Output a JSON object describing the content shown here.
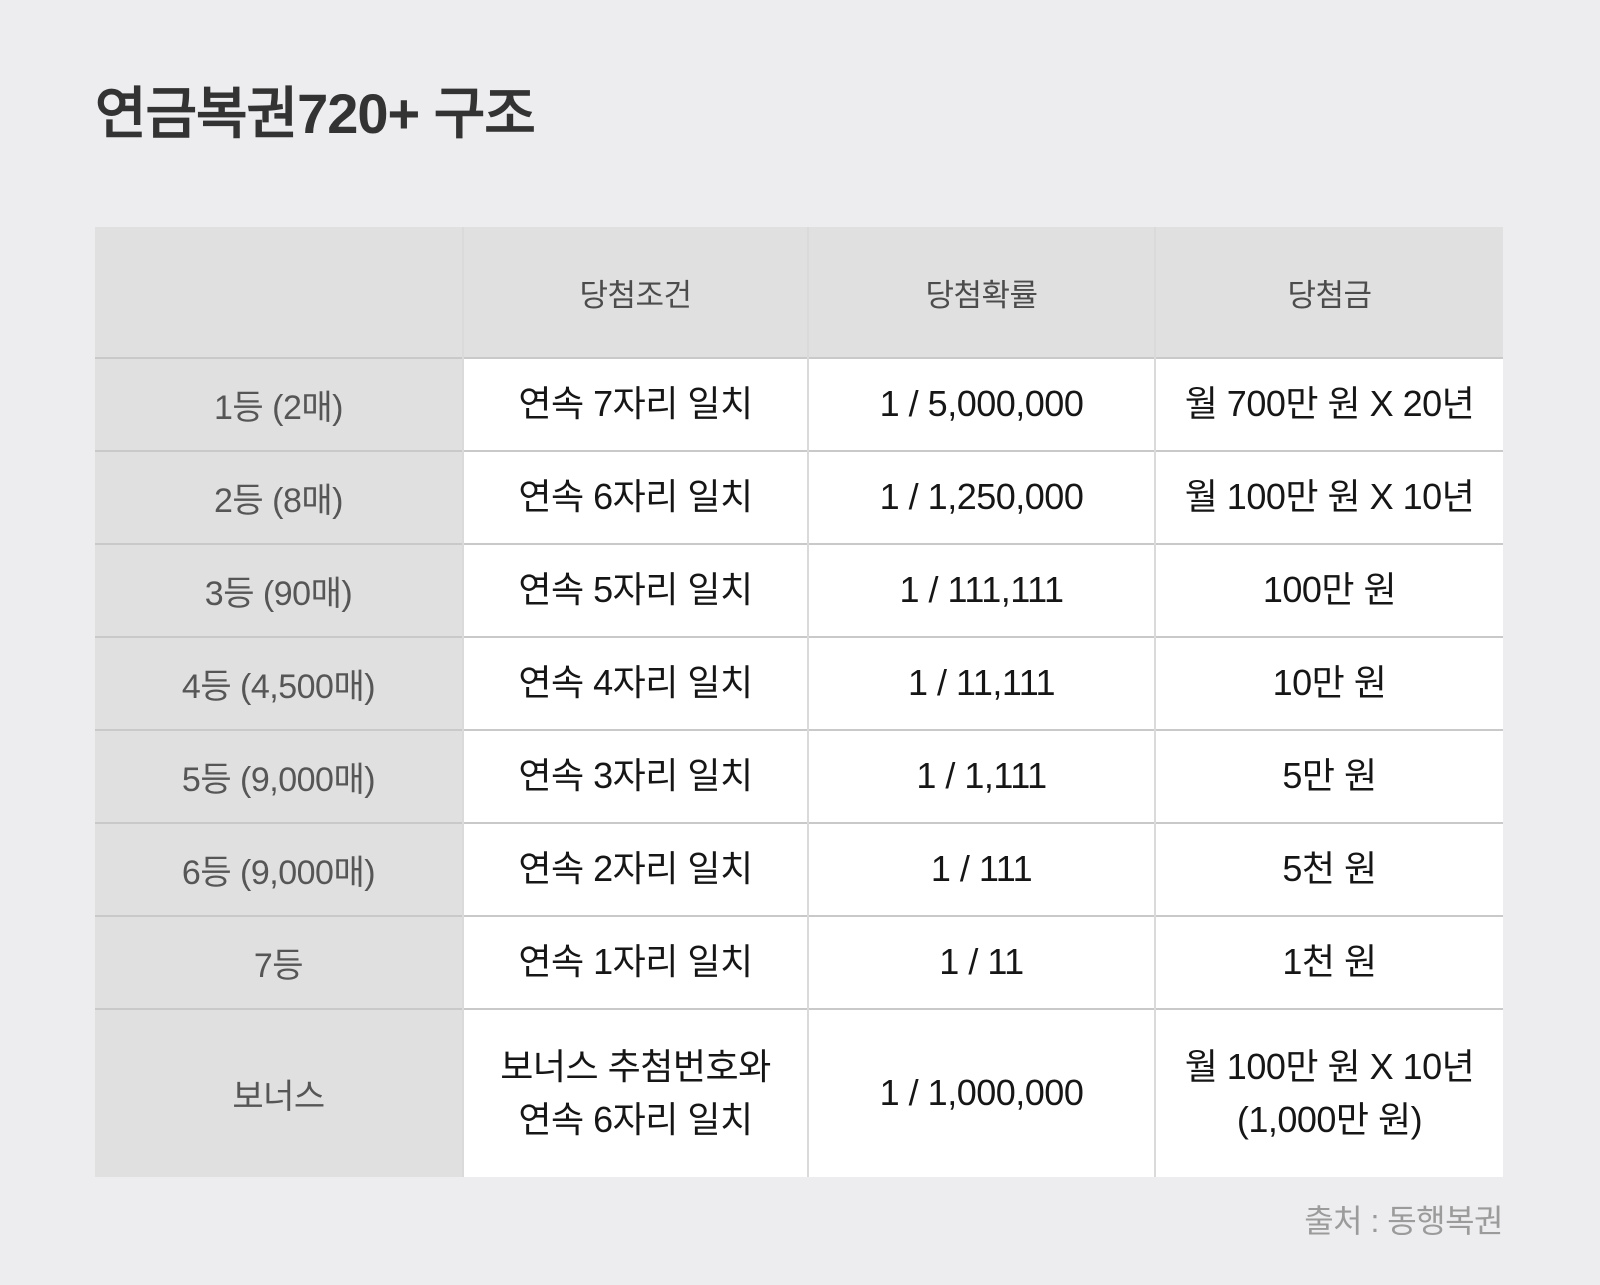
{
  "title": "연금복권720+ 구조",
  "source": "출처 : 동행복권",
  "colors": {
    "page_bg": "#edecef",
    "header_bg": "#e0e0e0",
    "rank_col_bg": "#e0e0e0",
    "data_cell_bg": "#ffffff",
    "title_text": "#333333",
    "header_text": "#4c4c4c",
    "rank_text": "#565656",
    "data_text": "#161616",
    "source_text": "#9b9b9b",
    "border_horizontal": "#c9c9c9",
    "border_vertical": "#dadada"
  },
  "chart_data": {
    "type": "table",
    "title": "연금복권720+ 구조",
    "columns": [
      "",
      "당첨조건",
      "당첨확률",
      "당첨금"
    ],
    "rows": [
      [
        "1등 (2매)",
        "연속 7자리 일치",
        "1 / 5,000,000",
        "월 700만 원 X 20년"
      ],
      [
        "2등 (8매)",
        "연속 6자리 일치",
        "1 / 1,250,000",
        "월 100만 원 X 10년"
      ],
      [
        "3등 (90매)",
        "연속 5자리 일치",
        "1 / 111,111",
        "100만 원"
      ],
      [
        "4등 (4,500매)",
        "연속 4자리 일치",
        "1 / 11,111",
        "10만 원"
      ],
      [
        "5등 (9,000매)",
        "연속 3자리 일치",
        "1 / 1,111",
        "5만 원"
      ],
      [
        "6등 (9,000매)",
        "연속 2자리 일치",
        "1 / 111",
        "5천 원"
      ],
      [
        "7등",
        "연속 1자리 일치",
        "1 / 11",
        "1천 원"
      ],
      [
        "보너스",
        "보너스 추첨번호와\n연속 6자리 일치",
        "1 / 1,000,000",
        "월 100만 원 X 10년\n(1,000만 원)"
      ]
    ],
    "source": "출처 : 동행복권",
    "layout": {
      "grid": "on",
      "header_row": true,
      "rank_column_shaded": true
    }
  }
}
